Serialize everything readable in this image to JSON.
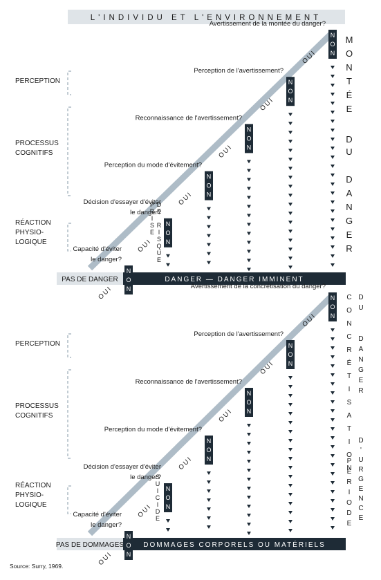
{
  "header": {
    "title": "L'INDIVIDU ET L'ENVIRONNEMENT"
  },
  "colors": {
    "dark": "#1e2b36",
    "light_gray": "#dfe4e8",
    "stair": "#aebcc7",
    "dashed": "#9aaab6",
    "text": "#1a1a1a"
  },
  "top": {
    "sides": {
      "perception": [
        "PERCEPTION"
      ],
      "cognitive": [
        "PROCESSUS",
        "COGNITIFS"
      ],
      "physio": [
        "RÉACTION",
        "PHYSIO-",
        "LOGIQUE"
      ]
    },
    "questions": [
      [
        "Capacité d'éviter",
        "le danger?"
      ],
      [
        "Décision d'essayer d'éviter",
        "le danger?"
      ],
      [
        "Perception du mode d'évitement?"
      ],
      [
        "Reconnaissance de l'avertissement?"
      ],
      [
        "Perception de l'avertissement?"
      ],
      [
        "Avertissement de la montée du danger?"
      ]
    ],
    "oui": "OUI",
    "non": "NON",
    "risk_label": [
      "PRISE",
      "DE",
      "RISQUE"
    ],
    "right_words": [
      "MONTÉE",
      "DU",
      "DANGER"
    ],
    "bottom_left": "PAS DE DANGER",
    "bottom_right": "DANGER — DANGER IMMINENT"
  },
  "bottom": {
    "sides": {
      "perception": [
        "PERCEPTION"
      ],
      "cognitive": [
        "PROCESSUS",
        "COGNITIFS"
      ],
      "physio": [
        "RÉACTION",
        "PHYSIO-",
        "LOGIQUE"
      ]
    },
    "questions": [
      [
        "Capacité d'éviter",
        "le danger?"
      ],
      [
        "Décision d'essayer d'éviter",
        "le danger?"
      ],
      [
        "Perception du mode d'évitement?"
      ],
      [
        "Reconnaissance de l'avertissement?"
      ],
      [
        "Perception de l'avertissement?"
      ],
      [
        "Avertissement de la concrétisation du danger?"
      ]
    ],
    "oui": "OUI",
    "non": "NON",
    "risk_label": [
      "SUICIDE"
    ],
    "right_col1": "CONCRÉTISATION",
    "right_col2_top": "DU DANGER",
    "right_col2_mid": "PÉRIODE",
    "right_col2_bottom": "D'URGENCE",
    "bottom_left": "PAS DE DOMMAGES",
    "bottom_right": "DOMMAGES CORPORELS OU MATÉRIELS"
  },
  "source": "Source: Surry, 1969."
}
